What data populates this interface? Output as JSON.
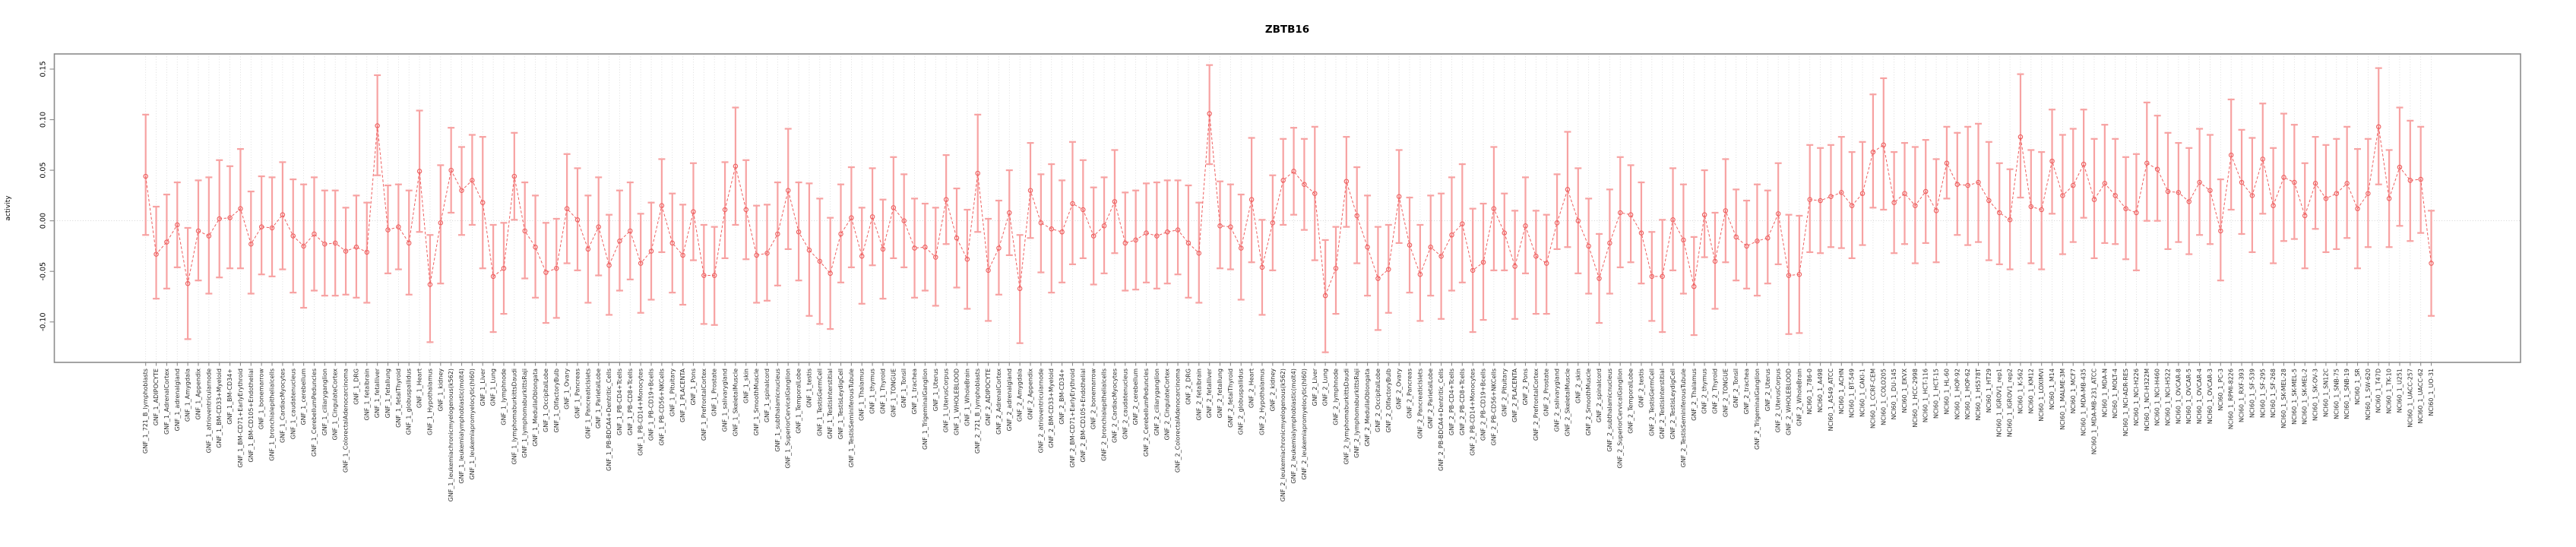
{
  "chart_data": {
    "type": "scatter",
    "title": "ZBTB16",
    "xlabel": "",
    "ylabel": "activity",
    "ylim": [
      -0.14,
      0.165
    ],
    "yticks": [
      -0.1,
      -0.05,
      0.0,
      0.05,
      0.1,
      0.15
    ],
    "ytick_labels": [
      "-0.10",
      "-0.05",
      "0.00",
      "0.05",
      "0.10",
      "0.15"
    ],
    "grid": "vertical dotted gridline per category, dotted horizontal line at zero",
    "legend_position": "none",
    "marker": "open-circle with error bars and caps, dashed connecting line",
    "colors": {
      "errorbar": "#f7a2a2",
      "line": "#ee5f5f",
      "marker": "#ee5f5f",
      "frame": "#8c8c8c",
      "gridline": "#d6d6d6",
      "label_text": "#303030"
    },
    "categories": [
      "GNF_1_721_B_lymphoblasts",
      "GNF_1_ADIPOCYTE",
      "GNF_1_AdrenalCortex",
      "GNF_1_adrenalgland",
      "GNF_1_Amygdala",
      "GNF_1_Appendix",
      "GNF_1_atrioventricularnode",
      "GNF_1_BM-CD33+Myeloid",
      "GNF_1_BM-CD34+",
      "GNF_1_BM-CD71+EarlyErythroid",
      "GNF_1_BM-CD105+Endothelial",
      "GNF_1_bonemarrow",
      "GNF_1_bronchialepithelialcells",
      "GNF_1_CardiacMyocytes",
      "GNF_1_caudatenucleus",
      "GNF_1_cerebellum",
      "GNF_1_CerebellumPeduncles",
      "GNF_1_ciliaryganglion",
      "GNF_1_CingulateCortex",
      "GNF_1_ColorectalAdenocarcinoma",
      "GNF_1_DRG",
      "GNF_1_fetalbrain",
      "GNF_1_fetalliver",
      "GNF_1_fetallung",
      "GNF_1_fetalThyroid",
      "GNF_1_globuspallidus",
      "GNF_1_Heart",
      "GNF_1_Hypothalamus",
      "GNF_1_kidney",
      "GNF_1_leukemiachronicmyelogenous(k562)",
      "GNF_1_leukemialymphoblastic(molt4)",
      "GNF_1_leukemiapromyelocytic(hl60)",
      "GNF_1_Liver",
      "GNF_1_Lung",
      "GNF_1_lymphnode",
      "GNF_1_lymphomaburkittsDaudi",
      "GNF_1_lymphomaburkittsRaji",
      "GNF_1_MedullaOblongata",
      "GNF_1_OccipitalLobe",
      "GNF_1_OlfactoryBulb",
      "GNF_1_Ovary",
      "GNF_1_Pancreas",
      "GNF_1_PancreaticIslets",
      "GNF_1_ParietalLobe",
      "GNF_1_PB-BDCA4+Dentritic_Cells",
      "GNF_1_PB-CD4+Tcells",
      "GNF_1_PB-CD8+Tcells",
      "GNF_1_PB-CD14+Monocytes",
      "GNF_1_PB-CD19+Bcells",
      "GNF_1_PB-CD56+NKCells",
      "GNF_1_Pituitary",
      "GNF_1_PLACENTA",
      "GNF_1_Pons",
      "GNF_1_PrefrontalCortex",
      "GNF_1_Prostate",
      "GNF_1_salivarygland",
      "GNF_1_SkeletalMuscle",
      "GNF_1_skin",
      "GNF_1_SmoothMuscle",
      "GNF_1_spinalcord",
      "GNF_1_subthalamicnucleus",
      "GNF_1_SuperiorCervicalGanglion",
      "GNF_1_TemporalLobe",
      "GNF_1_testis",
      "GNF_1_TestisGermCell",
      "GNF_1_TestisInterstitial",
      "GNF_1_TestisLeydigCell",
      "GNF_1_TestisSeminiferousTubule",
      "GNF_1_Thalamus",
      "GNF_1_thymus",
      "GNF_1_Thyroid",
      "GNF_1_TONGUE",
      "GNF_1_Tonsil",
      "GNF_1_trachea",
      "GNF_1_TrigeminalGanglion",
      "GNF_1_Uterus",
      "GNF_1_UterusCorpus",
      "GNF_1_WHOLEBLOOD",
      "GNF_1_WholeBrain",
      "GNF_2_721_B_lymphoblasts",
      "GNF_2_ADIPOCYTE",
      "GNF_2_AdrenalCortex",
      "GNF_2_adrenalgland",
      "GNF_2_Amygdala",
      "GNF_2_Appendix",
      "GNF_2_atrioventricularnode",
      "GNF_2_BM-CD33+Myeloid",
      "GNF_2_BM-CD34+",
      "GNF_2_BM-CD71+EarlyErythroid",
      "GNF_2_BM-CD105+Endothelial",
      "GNF_2_bonemarrow",
      "GNF_2_bronchialepithelialcells",
      "GNF_2_CardiacMyocytes",
      "GNF_2_caudatenucleus",
      "GNF_2_cerebellum",
      "GNF_2_CerebellumPeduncles",
      "GNF_2_ciliaryganglion",
      "GNF_2_CingulateCortex",
      "GNF_2_ColorectalAdenocarcinoma",
      "GNF_2_DRG",
      "GNF_2_fetalbrain",
      "GNF_2_fetalliver",
      "GNF_2_fetallung",
      "GNF_2_fetalThyroid",
      "GNF_2_globuspallidus",
      "GNF_2_Heart",
      "GNF_2_Hypothalamus",
      "GNF_2_kidney",
      "GNF_2_leukemiachronicmyelogenous(k562)",
      "GNF_2_leukemialymphoblastic(molt4)",
      "GNF_2_leukemiapromyelocytic(hl60)",
      "GNF_2_Liver",
      "GNF_2_Lung",
      "GNF_2_lymphnode",
      "GNF_2_lymphomaburkittsDaudi",
      "GNF_2_lymphomaburkittsRaji",
      "GNF_2_MedullaOblongata",
      "GNF_2_OccipitalLobe",
      "GNF_2_OlfactoryBulb",
      "GNF_2_Ovary",
      "GNF_2_Pancreas",
      "GNF_2_PancreaticIslets",
      "GNF_2_ParietalLobe",
      "GNF_2_PB-BDCA4+Dentritic_Cells",
      "GNF_2_PB-CD4+Tcells",
      "GNF_2_PB-CD8+Tcells",
      "GNF_2_PB-CD14+Monocytes",
      "GNF_2_PB-CD19+Bcells",
      "GNF_2_PB-CD56+NKCells",
      "GNF_2_Pituitary",
      "GNF_2_PLACENTA",
      "GNF_2_Pons",
      "GNF_2_PrefrontalCortex",
      "GNF_2_Prostate",
      "GNF_2_salivarygland",
      "GNF_2_SkeletalMuscle",
      "GNF_2_skin",
      "GNF_2_SmoothMuscle",
      "GNF_2_spinalcord",
      "GNF_2_subthalamicnucleus",
      "GNF_2_SuperiorCervicalGanglion",
      "GNF_2_TemporalLobe",
      "GNF_2_testis",
      "GNF_2_TestisGermCell",
      "GNF_2_TestisInterstitial",
      "GNF_2_TestisLeydigCell",
      "GNF_2_TestisSeminiferousTubule",
      "GNF_2_Thalamus",
      "GNF_2_thymus",
      "GNF_2_Thyroid",
      "GNF_2_TONGUE",
      "GNF_2_Tonsil",
      "GNF_2_trachea",
      "GNF_2_TrigeminalGanglion",
      "GNF_2_Uterus",
      "GNF_2_UterusCorpus",
      "GNF_2_WHOLEBLOOD",
      "GNF_2_WholeBrain",
      "NCI60_1_786-0",
      "NCI60_1_A498",
      "NCI60_1_A549_ATCC",
      "NCI60_1_ACHN",
      "NCI60_1_BT-549",
      "NCI60_1_CAKI-1",
      "NCI60_1_CCRF-CEM",
      "NCI60_1_COLO205",
      "NCI60_1_DU-145",
      "NCI60_1_EKVX",
      "NCI60_1_HCC-2998",
      "NCI60_1_HCT-116",
      "NCI60_1_HCT-15",
      "NCI60_1_HL-60",
      "NCI60_1_HOP-92",
      "NCI60_1_HOP-62",
      "NCI60_1_HS578T",
      "NCI60_1_HT29",
      "NCI60_1_IGROV1_rep1",
      "NCI60_1_IGROV1_rep2",
      "NCI60_1_K-562",
      "NCI60_1_KM12",
      "NCI60_1_LOXIMVI",
      "NCI60_1_M14",
      "NCI60_1_MALME-3M",
      "NCI60_1_MCF7",
      "NCI60_1_MDA-MB-435",
      "NCI60_1_MDA-MB-231_ATCC",
      "NCI60_1_MDA-N",
      "NCI60_1_MOLT-4",
      "NCI60_1_NCI-ADR-RES",
      "NCI60_1_NCI-H226",
      "NCI60_1_NCI-H322M",
      "NCI60_1_NCI-H460",
      "NCI60_1_NCI-H522",
      "NCI60_1_OVCAR-8",
      "NCI60_1_OVCAR-5",
      "NCI60_1_OVCAR-4",
      "NCI60_1_OVCAR-3",
      "NCI60_1_PC-3",
      "NCI60_1_RPMI-8226",
      "NCI60_1_RXF-393",
      "NCI60_1_SF-539",
      "NCI60_1_SF-295",
      "NCI60_1_SF-268",
      "NCI60_1_SK-MEL-28",
      "NCI60_1_SK-MEL-5",
      "NCI60_1_SK-MEL-2",
      "NCI60_1_SK-OV-3",
      "NCI60_1_SN12C",
      "NCI60_1_SNB-75",
      "NCI60_1_SNB-19",
      "NCI60_1_SR",
      "NCI60_1_SW-620",
      "NCI60_1_T47D",
      "NCI60_1_TK-10",
      "NCI60_1_U251",
      "NCI60_1_UACC-257",
      "NCI60_1_UACC-62",
      "NCI60_1_UO-31"
    ],
    "series": [
      {
        "name": "activity",
        "mean": [
          0.044,
          -0.033,
          -0.021,
          -0.004,
          -0.062,
          -0.01,
          -0.015,
          0.002,
          0.003,
          0.012,
          -0.023,
          -0.006,
          -0.007,
          0.006,
          -0.015,
          -0.025,
          -0.013,
          -0.023,
          -0.022,
          -0.03,
          -0.026,
          -0.031,
          0.094,
          -0.009,
          -0.006,
          -0.022,
          0.049,
          -0.063,
          -0.002,
          0.05,
          0.03,
          0.04,
          0.018,
          -0.055,
          -0.047,
          0.044,
          -0.01,
          -0.026,
          -0.051,
          -0.047,
          0.012,
          0.001,
          -0.028,
          -0.006,
          -0.044,
          -0.02,
          -0.01,
          -0.042,
          -0.03,
          0.015,
          -0.022,
          -0.034,
          0.009,
          -0.054,
          -0.054,
          0.011,
          0.054,
          0.011,
          -0.034,
          -0.032,
          -0.013,
          0.03,
          -0.011,
          -0.029,
          -0.04,
          -0.052,
          -0.013,
          0.003,
          -0.035,
          0.004,
          -0.028,
          0.013,
          0.0,
          -0.027,
          -0.026,
          -0.036,
          0.021,
          -0.017,
          -0.038,
          0.047,
          -0.049,
          -0.027,
          0.008,
          -0.067,
          0.03,
          -0.002,
          -0.008,
          -0.011,
          0.017,
          0.011,
          -0.015,
          -0.005,
          0.019,
          -0.022,
          -0.019,
          -0.012,
          -0.015,
          -0.011,
          -0.009,
          -0.022,
          -0.032,
          0.106,
          -0.005,
          -0.006,
          -0.027,
          0.021,
          -0.046,
          -0.002,
          0.04,
          0.049,
          0.036,
          0.027,
          -0.074,
          -0.047,
          0.039,
          0.005,
          -0.026,
          -0.057,
          -0.048,
          0.024,
          -0.024,
          -0.053,
          -0.026,
          -0.035,
          -0.014,
          -0.003,
          -0.049,
          -0.041,
          0.012,
          -0.012,
          -0.045,
          -0.005,
          -0.035,
          -0.042,
          -0.002,
          0.031,
          0.0,
          -0.025,
          -0.057,
          -0.022,
          0.008,
          0.006,
          -0.012,
          -0.055,
          -0.055,
          0.001,
          -0.019,
          -0.065,
          0.006,
          -0.04,
          0.01,
          -0.016,
          -0.025,
          -0.02,
          -0.017,
          0.007,
          -0.054,
          -0.053,
          0.021,
          0.02,
          0.024,
          0.028,
          0.015,
          0.027,
          0.068,
          0.075,
          0.018,
          0.027,
          0.015,
          0.029,
          0.01,
          0.057,
          0.036,
          0.035,
          0.038,
          0.02,
          0.008,
          0.001,
          0.083,
          0.014,
          0.011,
          0.059,
          0.025,
          0.035,
          0.056,
          0.021,
          0.037,
          0.025,
          0.012,
          0.008,
          0.057,
          0.051,
          0.029,
          0.028,
          0.019,
          0.038,
          0.03,
          -0.01,
          0.065,
          0.038,
          0.025,
          0.061,
          0.015,
          0.043,
          0.038,
          0.005,
          0.037,
          0.022,
          0.027,
          0.037,
          0.012,
          0.027,
          0.093,
          0.022,
          0.053,
          0.04,
          0.041,
          -0.042
        ],
        "lo": [
          -0.014,
          -0.077,
          -0.067,
          -0.046,
          -0.117,
          -0.059,
          -0.072,
          -0.056,
          -0.047,
          -0.047,
          -0.072,
          -0.053,
          -0.055,
          -0.048,
          -0.071,
          -0.086,
          -0.069,
          -0.074,
          -0.074,
          -0.073,
          -0.076,
          -0.081,
          0.045,
          -0.052,
          -0.048,
          -0.073,
          -0.011,
          -0.12,
          -0.062,
          0.008,
          -0.014,
          -0.004,
          -0.047,
          -0.11,
          -0.092,
          0.001,
          -0.057,
          -0.076,
          -0.101,
          -0.096,
          -0.042,
          -0.049,
          -0.081,
          -0.054,
          -0.093,
          -0.069,
          -0.058,
          -0.091,
          -0.078,
          -0.031,
          -0.071,
          -0.083,
          -0.039,
          -0.102,
          -0.103,
          -0.037,
          -0.004,
          -0.038,
          -0.081,
          -0.079,
          -0.064,
          -0.028,
          -0.059,
          -0.094,
          -0.102,
          -0.107,
          -0.061,
          -0.046,
          -0.082,
          -0.044,
          -0.077,
          -0.037,
          -0.046,
          -0.076,
          -0.069,
          -0.084,
          -0.023,
          -0.066,
          -0.087,
          -0.011,
          -0.099,
          -0.073,
          -0.034,
          -0.121,
          -0.017,
          -0.051,
          -0.071,
          -0.061,
          -0.043,
          -0.037,
          -0.063,
          -0.052,
          -0.032,
          -0.069,
          -0.068,
          -0.061,
          -0.067,
          -0.062,
          -0.053,
          -0.076,
          -0.081,
          0.056,
          -0.047,
          -0.048,
          -0.078,
          -0.041,
          -0.093,
          -0.049,
          -0.004,
          0.006,
          -0.009,
          -0.039,
          -0.13,
          -0.092,
          -0.006,
          -0.042,
          -0.074,
          -0.108,
          -0.091,
          -0.022,
          -0.071,
          -0.099,
          -0.074,
          -0.097,
          -0.069,
          -0.061,
          -0.11,
          -0.098,
          -0.049,
          -0.049,
          -0.097,
          -0.052,
          -0.092,
          -0.092,
          -0.028,
          -0.026,
          -0.052,
          -0.072,
          -0.101,
          -0.072,
          -0.046,
          -0.041,
          -0.062,
          -0.099,
          -0.11,
          -0.049,
          -0.072,
          -0.113,
          -0.036,
          -0.087,
          -0.041,
          -0.059,
          -0.067,
          -0.074,
          -0.062,
          -0.043,
          -0.112,
          -0.111,
          -0.031,
          -0.032,
          -0.026,
          -0.027,
          -0.037,
          -0.024,
          0.013,
          0.011,
          -0.032,
          -0.023,
          -0.042,
          -0.022,
          -0.041,
          0.022,
          -0.014,
          -0.024,
          -0.021,
          -0.039,
          -0.043,
          -0.048,
          0.023,
          -0.042,
          -0.048,
          0.007,
          -0.033,
          -0.021,
          0.003,
          -0.037,
          -0.022,
          -0.023,
          -0.038,
          -0.049,
          0.0,
          0.0,
          -0.028,
          -0.021,
          -0.033,
          -0.014,
          -0.023,
          -0.059,
          0.011,
          -0.013,
          -0.031,
          0.007,
          -0.042,
          -0.02,
          -0.018,
          -0.047,
          -0.008,
          -0.031,
          -0.028,
          -0.017,
          -0.047,
          -0.026,
          0.036,
          -0.026,
          -0.005,
          -0.02,
          -0.012,
          -0.094
        ],
        "hi": [
          0.105,
          0.014,
          0.026,
          0.038,
          -0.007,
          0.04,
          0.043,
          0.06,
          0.054,
          0.071,
          0.029,
          0.044,
          0.043,
          0.058,
          0.041,
          0.036,
          0.043,
          0.03,
          0.03,
          0.013,
          0.025,
          0.018,
          0.144,
          0.035,
          0.036,
          0.03,
          0.109,
          -0.014,
          0.055,
          0.092,
          0.073,
          0.085,
          0.083,
          -0.004,
          -0.002,
          0.087,
          0.038,
          0.025,
          -0.002,
          0.002,
          0.066,
          0.052,
          0.025,
          0.043,
          0.006,
          0.03,
          0.038,
          0.007,
          0.018,
          0.061,
          0.027,
          0.016,
          0.057,
          -0.004,
          -0.006,
          0.058,
          0.112,
          0.06,
          0.015,
          0.016,
          0.038,
          0.091,
          0.038,
          0.037,
          0.022,
          0.003,
          0.036,
          0.053,
          0.013,
          0.052,
          0.021,
          0.063,
          0.046,
          0.022,
          0.017,
          0.013,
          0.065,
          0.032,
          0.011,
          0.105,
          0.002,
          0.02,
          0.05,
          -0.014,
          0.077,
          0.046,
          0.056,
          0.04,
          0.078,
          0.06,
          0.033,
          0.043,
          0.07,
          0.028,
          0.03,
          0.037,
          0.038,
          0.04,
          0.04,
          0.035,
          0.018,
          0.154,
          0.039,
          0.036,
          0.026,
          0.082,
          0.001,
          0.045,
          0.081,
          0.092,
          0.081,
          0.093,
          -0.019,
          -0.006,
          0.083,
          0.053,
          0.025,
          -0.006,
          -0.004,
          0.07,
          0.023,
          -0.004,
          0.025,
          0.027,
          0.043,
          0.056,
          0.012,
          0.017,
          0.073,
          0.027,
          0.01,
          0.043,
          0.01,
          0.006,
          0.046,
          0.088,
          0.052,
          0.022,
          -0.013,
          0.031,
          0.063,
          0.055,
          0.038,
          -0.011,
          0.001,
          0.052,
          0.036,
          -0.016,
          0.05,
          0.008,
          0.061,
          0.031,
          0.02,
          0.036,
          0.03,
          0.057,
          0.006,
          0.005,
          0.075,
          0.072,
          0.075,
          0.083,
          0.068,
          0.078,
          0.125,
          0.141,
          0.068,
          0.077,
          0.073,
          0.08,
          0.061,
          0.093,
          0.087,
          0.093,
          0.096,
          0.078,
          0.057,
          0.051,
          0.145,
          0.07,
          0.068,
          0.11,
          0.085,
          0.091,
          0.11,
          0.081,
          0.095,
          0.081,
          0.063,
          0.066,
          0.117,
          0.104,
          0.087,
          0.077,
          0.072,
          0.091,
          0.085,
          0.041,
          0.12,
          0.09,
          0.082,
          0.116,
          0.072,
          0.106,
          0.095,
          0.057,
          0.083,
          0.075,
          0.081,
          0.093,
          0.071,
          0.081,
          0.151,
          0.07,
          0.112,
          0.099,
          0.093,
          0.01
        ]
      }
    ]
  }
}
